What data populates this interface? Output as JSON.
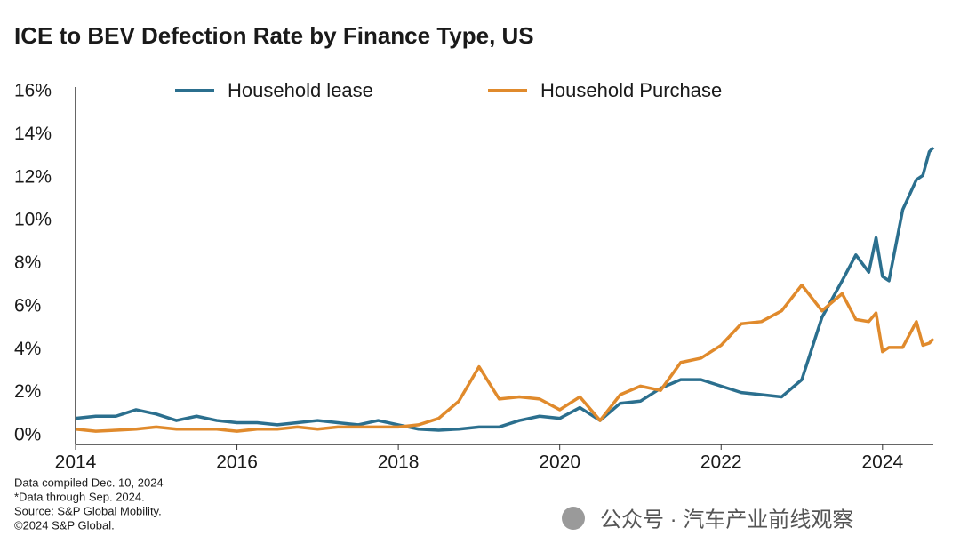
{
  "chart_data": {
    "type": "line",
    "title": "ICE to BEV Defection Rate by Finance Type, US",
    "x": [
      2014,
      2014.25,
      2014.5,
      2014.75,
      2015,
      2015.25,
      2015.5,
      2015.75,
      2016,
      2016.25,
      2016.5,
      2016.75,
      2017,
      2017.25,
      2017.5,
      2017.75,
      2018,
      2018.25,
      2018.5,
      2018.75,
      2019,
      2019.25,
      2019.5,
      2019.75,
      2020,
      2020.25,
      2020.5,
      2020.75,
      2021,
      2021.25,
      2021.5,
      2021.75,
      2022,
      2022.25,
      2022.5,
      2022.75,
      2023,
      2023.25,
      2023.5,
      2023.67,
      2023.83,
      2023.92,
      2024,
      2024.08,
      2024.25,
      2024.42,
      2024.5,
      2024.58,
      2024.63
    ],
    "series": [
      {
        "name": "Household lease",
        "color": "#2b6f8e",
        "values": [
          0.8,
          0.9,
          0.9,
          1.2,
          1.0,
          0.7,
          0.9,
          0.7,
          0.6,
          0.6,
          0.5,
          0.6,
          0.7,
          0.6,
          0.5,
          0.7,
          0.5,
          0.3,
          0.25,
          0.3,
          0.4,
          0.4,
          0.7,
          0.9,
          0.8,
          1.3,
          0.7,
          1.5,
          1.6,
          2.2,
          2.6,
          2.6,
          2.3,
          2.0,
          1.9,
          1.8,
          2.6,
          5.5,
          7.2,
          8.4,
          7.6,
          9.2,
          7.4,
          7.2,
          10.5,
          11.9,
          12.1,
          13.2,
          13.4
        ]
      },
      {
        "name": "Household Purchase",
        "color": "#e08a2c",
        "values": [
          0.3,
          0.2,
          0.25,
          0.3,
          0.4,
          0.3,
          0.3,
          0.3,
          0.2,
          0.3,
          0.3,
          0.4,
          0.3,
          0.4,
          0.4,
          0.4,
          0.4,
          0.5,
          0.8,
          1.6,
          3.2,
          1.7,
          1.8,
          1.7,
          1.2,
          1.8,
          0.7,
          1.9,
          2.3,
          2.1,
          3.4,
          3.6,
          4.2,
          5.2,
          5.3,
          5.8,
          7.0,
          5.8,
          6.6,
          5.4,
          5.3,
          5.7,
          3.9,
          4.1,
          4.1,
          5.3,
          4.2,
          4.3,
          4.5
        ]
      }
    ],
    "xlim": [
      2014,
      2024.63
    ],
    "xticks": [
      2014,
      2016,
      2018,
      2020,
      2022,
      2024
    ],
    "ylim": [
      0,
      16
    ],
    "yticks": [
      {
        "value": 0,
        "label": "0%"
      },
      {
        "value": 2,
        "label": "2%"
      },
      {
        "value": 4,
        "label": "4%"
      },
      {
        "value": 6,
        "label": "6%"
      },
      {
        "value": 8,
        "label": "8%"
      },
      {
        "value": 10,
        "label": "10%"
      },
      {
        "value": 12,
        "label": "12%"
      },
      {
        "value": 14,
        "label": "14%"
      },
      {
        "value": 16,
        "label": "16%"
      }
    ],
    "legend": "top",
    "notes": [
      "Data compiled Dec. 10, 2024",
      "*Data through Sep. 2024.",
      "Source: S&P Global Mobility.",
      "©2024 S&P Global."
    ],
    "watermark": "公众号 · 汽车产业前线观察"
  }
}
